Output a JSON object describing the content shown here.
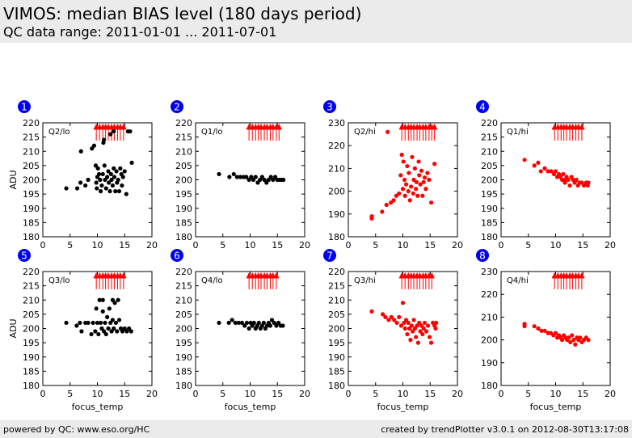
{
  "header": {
    "title": "VIMOS: median BIAS level (180 days period)",
    "subtitle": "QC data range: 2011-01-01 ... 2011-07-01"
  },
  "footer": {
    "left": "powered by QC: www.eso.org/HC",
    "right": "created by trendPlotter v3.0.1 on 2012-08-30T13:17:08"
  },
  "colors": {
    "black": "#000000",
    "red": "#ff0000",
    "badge": "#0000ee",
    "band": "#ebebeb"
  },
  "chart_data": [
    {
      "type": "scatter",
      "panel_number": "1",
      "label": "Q2/lo",
      "color": "#000000",
      "xlabel": "",
      "ylabel": "ADU",
      "xlim": [
        0,
        20
      ],
      "ylim": [
        180,
        220
      ],
      "xticks": [
        0,
        5,
        10,
        15,
        20
      ],
      "yticks": [
        180,
        185,
        190,
        195,
        200,
        205,
        210,
        215,
        220
      ],
      "markers_top": [
        9.8,
        10.4,
        11.0,
        11.5,
        12.0,
        12.6,
        13.1,
        13.7,
        14.2,
        14.8
      ],
      "points": [
        [
          4.3,
          197
        ],
        [
          6.3,
          197
        ],
        [
          7.0,
          210
        ],
        [
          6.9,
          199
        ],
        [
          7.8,
          198
        ],
        [
          8.3,
          200
        ],
        [
          9.0,
          211
        ],
        [
          9.4,
          212
        ],
        [
          9.7,
          205
        ],
        [
          9.8,
          199
        ],
        [
          9.9,
          197
        ],
        [
          10.0,
          201
        ],
        [
          10.1,
          204
        ],
        [
          10.3,
          202
        ],
        [
          10.5,
          200
        ],
        [
          10.6,
          196
        ],
        [
          10.8,
          198
        ],
        [
          11.0,
          202
        ],
        [
          11.1,
          213
        ],
        [
          11.3,
          205
        ],
        [
          11.4,
          200
        ],
        [
          11.6,
          197
        ],
        [
          11.8,
          201
        ],
        [
          12.0,
          203
        ],
        [
          12.1,
          199
        ],
        [
          12.3,
          196
        ],
        [
          12.5,
          202
        ],
        [
          12.6,
          200
        ],
        [
          12.8,
          198
        ],
        [
          13.0,
          204
        ],
        [
          13.1,
          201
        ],
        [
          13.3,
          196
        ],
        [
          13.5,
          203
        ],
        [
          13.6,
          199
        ],
        [
          13.8,
          200
        ],
        [
          14.0,
          196
        ],
        [
          14.2,
          204
        ],
        [
          14.4,
          202
        ],
        [
          14.5,
          198
        ],
        [
          14.7,
          201
        ],
        [
          15.0,
          203
        ],
        [
          15.3,
          195
        ],
        [
          15.6,
          217
        ],
        [
          16.0,
          217
        ],
        [
          16.3,
          206
        ],
        [
          13.0,
          217
        ],
        [
          12.4,
          216
        ],
        [
          11.2,
          214
        ]
      ]
    },
    {
      "type": "scatter",
      "panel_number": "2",
      "label": "Q1/lo",
      "color": "#000000",
      "xlabel": "",
      "ylabel": "",
      "xlim": [
        0,
        20
      ],
      "ylim": [
        180,
        220
      ],
      "xticks": [
        0,
        5,
        10,
        15,
        20
      ],
      "yticks": [
        180,
        185,
        190,
        195,
        200,
        205,
        210,
        215,
        220
      ],
      "markers_top": [
        9.8,
        10.4,
        11.0,
        11.5,
        12.0,
        12.6,
        13.1,
        13.7,
        14.2,
        14.8,
        15.3
      ],
      "points": [
        [
          4.3,
          202
        ],
        [
          6.2,
          201
        ],
        [
          7.0,
          202
        ],
        [
          7.6,
          201
        ],
        [
          8.2,
          201
        ],
        [
          8.8,
          201
        ],
        [
          9.3,
          201
        ],
        [
          9.8,
          200
        ],
        [
          10.2,
          201
        ],
        [
          10.6,
          200
        ],
        [
          11.0,
          201
        ],
        [
          11.4,
          199
        ],
        [
          11.8,
          200
        ],
        [
          12.2,
          201
        ],
        [
          12.6,
          200
        ],
        [
          13.0,
          199
        ],
        [
          13.4,
          200
        ],
        [
          13.8,
          201
        ],
        [
          14.2,
          200
        ],
        [
          14.6,
          201
        ],
        [
          15.0,
          200
        ],
        [
          15.4,
          200
        ],
        [
          15.8,
          200
        ],
        [
          16.1,
          200
        ]
      ]
    },
    {
      "type": "scatter",
      "panel_number": "3",
      "label": "Q2/hi",
      "color": "#ff0000",
      "xlabel": "",
      "ylabel": "",
      "xlim": [
        0,
        20
      ],
      "ylim": [
        180,
        230
      ],
      "xticks": [
        0,
        5,
        10,
        15,
        20
      ],
      "yticks": [
        180,
        190,
        200,
        210,
        220,
        230
      ],
      "markers_top": [
        9.8,
        10.4,
        11.0,
        11.5,
        12.0,
        12.6,
        13.1,
        13.7,
        14.2,
        14.8,
        15.3,
        15.8
      ],
      "points": [
        [
          4.3,
          188
        ],
        [
          4.3,
          189
        ],
        [
          6.2,
          191
        ],
        [
          7.0,
          194
        ],
        [
          7.8,
          195
        ],
        [
          8.3,
          196
        ],
        [
          8.8,
          198
        ],
        [
          9.3,
          199
        ],
        [
          9.6,
          207
        ],
        [
          9.8,
          216
        ],
        [
          10.0,
          201
        ],
        [
          10.1,
          213
        ],
        [
          10.3,
          205
        ],
        [
          10.4,
          198
        ],
        [
          10.6,
          203
        ],
        [
          10.8,
          211
        ],
        [
          11.0,
          200
        ],
        [
          11.1,
          208
        ],
        [
          11.3,
          196
        ],
        [
          11.5,
          202
        ],
        [
          11.7,
          215
        ],
        [
          11.9,
          199
        ],
        [
          12.0,
          205
        ],
        [
          12.2,
          210
        ],
        [
          12.4,
          201
        ],
        [
          12.5,
          204
        ],
        [
          12.7,
          198
        ],
        [
          12.9,
          213
        ],
        [
          13.0,
          207
        ],
        [
          13.2,
          203
        ],
        [
          13.4,
          209
        ],
        [
          13.6,
          198
        ],
        [
          13.8,
          204
        ],
        [
          14.0,
          206
        ],
        [
          14.2,
          201
        ],
        [
          14.5,
          208
        ],
        [
          14.8,
          205
        ],
        [
          15.2,
          195
        ],
        [
          15.8,
          212
        ],
        [
          7.2,
          226
        ]
      ]
    },
    {
      "type": "scatter",
      "panel_number": "4",
      "label": "Q1/hi",
      "color": "#ff0000",
      "xlabel": "",
      "ylabel": "",
      "xlim": [
        0,
        20
      ],
      "ylim": [
        180,
        220
      ],
      "xticks": [
        0,
        5,
        10,
        15,
        20
      ],
      "yticks": [
        180,
        185,
        190,
        195,
        200,
        205,
        210,
        215,
        220
      ],
      "markers_top": [
        9.8,
        10.4,
        11.0,
        11.5,
        12.0,
        12.6,
        13.1,
        13.7,
        14.2,
        14.8
      ],
      "points": [
        [
          4.3,
          207
        ],
        [
          6.1,
          205
        ],
        [
          6.8,
          206
        ],
        [
          7.3,
          203
        ],
        [
          8.0,
          204
        ],
        [
          8.6,
          203
        ],
        [
          9.2,
          203
        ],
        [
          9.7,
          202
        ],
        [
          10.0,
          203
        ],
        [
          10.3,
          201
        ],
        [
          10.6,
          202
        ],
        [
          10.9,
          201
        ],
        [
          11.2,
          200
        ],
        [
          11.4,
          202
        ],
        [
          11.7,
          199
        ],
        [
          12.0,
          201
        ],
        [
          12.3,
          200
        ],
        [
          12.6,
          198
        ],
        [
          12.9,
          201
        ],
        [
          13.2,
          200
        ],
        [
          13.5,
          199
        ],
        [
          13.8,
          200
        ],
        [
          14.1,
          198
        ],
        [
          14.4,
          199
        ],
        [
          14.8,
          199
        ],
        [
          15.2,
          198
        ],
        [
          15.6,
          199
        ],
        [
          16.0,
          199
        ],
        [
          15.9,
          198
        ],
        [
          11.8,
          200
        ]
      ]
    },
    {
      "type": "scatter",
      "panel_number": "5",
      "label": "Q3/lo",
      "color": "#000000",
      "xlabel": "focus_temp",
      "ylabel": "ADU",
      "xlim": [
        0,
        20
      ],
      "ylim": [
        180,
        220
      ],
      "xticks": [
        0,
        5,
        10,
        15,
        20
      ],
      "yticks": [
        180,
        185,
        190,
        195,
        200,
        205,
        210,
        215,
        220
      ],
      "markers_top": [
        9.8,
        10.4,
        11.0,
        11.5,
        12.0,
        12.6,
        13.1,
        13.7,
        14.2,
        14.8
      ],
      "points": [
        [
          4.3,
          202
        ],
        [
          6.2,
          201
        ],
        [
          6.8,
          202
        ],
        [
          7.1,
          199
        ],
        [
          7.8,
          202
        ],
        [
          8.3,
          202
        ],
        [
          8.9,
          198
        ],
        [
          9.2,
          202
        ],
        [
          9.6,
          199
        ],
        [
          9.8,
          207
        ],
        [
          10.0,
          202
        ],
        [
          10.2,
          198
        ],
        [
          10.4,
          210
        ],
        [
          10.6,
          202
        ],
        [
          10.8,
          200
        ],
        [
          11.0,
          206
        ],
        [
          11.2,
          199
        ],
        [
          11.4,
          202
        ],
        [
          11.6,
          198
        ],
        [
          11.8,
          204
        ],
        [
          12.0,
          200
        ],
        [
          12.2,
          207
        ],
        [
          12.4,
          202
        ],
        [
          12.6,
          199
        ],
        [
          12.8,
          210
        ],
        [
          13.0,
          200
        ],
        [
          13.2,
          209
        ],
        [
          13.4,
          202
        ],
        [
          13.6,
          199
        ],
        [
          13.8,
          210
        ],
        [
          14.0,
          203
        ],
        [
          14.3,
          200
        ],
        [
          14.6,
          199
        ],
        [
          15.0,
          200
        ],
        [
          15.4,
          199
        ],
        [
          15.8,
          200
        ],
        [
          16.2,
          199
        ],
        [
          11.0,
          210
        ],
        [
          12.8,
          203
        ]
      ]
    },
    {
      "type": "scatter",
      "panel_number": "6",
      "label": "Q4/lo",
      "color": "#000000",
      "xlabel": "focus_temp",
      "ylabel": "",
      "xlim": [
        0,
        20
      ],
      "ylim": [
        180,
        220
      ],
      "xticks": [
        0,
        5,
        10,
        15,
        20
      ],
      "yticks": [
        180,
        185,
        190,
        195,
        200,
        205,
        210,
        215,
        220
      ],
      "markers_top": [
        9.8,
        10.4,
        11.0,
        11.5,
        12.0,
        12.6,
        13.1,
        13.7,
        14.2,
        14.8
      ],
      "points": [
        [
          4.3,
          202
        ],
        [
          6.1,
          202
        ],
        [
          6.7,
          203
        ],
        [
          7.3,
          202
        ],
        [
          7.9,
          202
        ],
        [
          8.5,
          202
        ],
        [
          9.0,
          201
        ],
        [
          9.4,
          202
        ],
        [
          9.8,
          200
        ],
        [
          10.1,
          202
        ],
        [
          10.4,
          201
        ],
        [
          10.7,
          202
        ],
        [
          11.0,
          200
        ],
        [
          11.3,
          201
        ],
        [
          11.6,
          202
        ],
        [
          11.9,
          200
        ],
        [
          12.2,
          201
        ],
        [
          12.5,
          202
        ],
        [
          12.8,
          200
        ],
        [
          13.1,
          201
        ],
        [
          13.4,
          202
        ],
        [
          13.7,
          201
        ],
        [
          14.0,
          203
        ],
        [
          14.4,
          202
        ],
        [
          14.8,
          201
        ],
        [
          15.2,
          202
        ],
        [
          15.6,
          201
        ],
        [
          16.0,
          201
        ]
      ]
    },
    {
      "type": "scatter",
      "panel_number": "7",
      "label": "Q3/hi",
      "color": "#ff0000",
      "xlabel": "focus_temp",
      "ylabel": "",
      "xlim": [
        0,
        20
      ],
      "ylim": [
        180,
        220
      ],
      "xticks": [
        0,
        5,
        10,
        15,
        20
      ],
      "yticks": [
        180,
        185,
        190,
        195,
        200,
        205,
        210,
        215,
        220
      ],
      "markers_top": [
        9.8,
        10.4,
        11.0,
        11.5,
        12.0,
        12.6,
        13.1,
        13.7,
        14.2,
        14.8,
        15.3
      ],
      "points": [
        [
          4.3,
          206
        ],
        [
          6.3,
          205
        ],
        [
          6.8,
          204
        ],
        [
          7.4,
          203
        ],
        [
          7.9,
          204
        ],
        [
          8.4,
          203
        ],
        [
          8.9,
          202
        ],
        [
          9.3,
          204
        ],
        [
          9.7,
          201
        ],
        [
          10.0,
          209
        ],
        [
          10.2,
          202
        ],
        [
          10.4,
          200
        ],
        [
          10.6,
          203
        ],
        [
          10.8,
          198
        ],
        [
          11.0,
          202
        ],
        [
          11.2,
          200
        ],
        [
          11.4,
          196
        ],
        [
          11.6,
          201
        ],
        [
          11.8,
          199
        ],
        [
          12.0,
          203
        ],
        [
          12.2,
          200
        ],
        [
          12.4,
          197
        ],
        [
          12.6,
          201
        ],
        [
          12.8,
          195
        ],
        [
          13.0,
          202
        ],
        [
          13.2,
          199
        ],
        [
          13.4,
          201
        ],
        [
          13.6,
          198
        ],
        [
          13.8,
          200
        ],
        [
          14.0,
          202
        ],
        [
          14.3,
          199
        ],
        [
          14.6,
          201
        ],
        [
          14.9,
          197
        ],
        [
          15.2,
          195
        ],
        [
          15.5,
          202
        ],
        [
          15.8,
          201
        ],
        [
          16.0,
          200
        ],
        [
          16.1,
          202
        ]
      ]
    },
    {
      "type": "scatter",
      "panel_number": "8",
      "label": "Q4/hi",
      "color": "#ff0000",
      "xlabel": "focus_temp",
      "ylabel": "",
      "xlim": [
        0,
        20
      ],
      "ylim": [
        180,
        230
      ],
      "xticks": [
        0,
        5,
        10,
        15,
        20
      ],
      "yticks": [
        180,
        190,
        200,
        210,
        220,
        230
      ],
      "markers_top": [
        9.8,
        10.4,
        11.0,
        11.5,
        12.0,
        12.6,
        13.1,
        13.7,
        14.2,
        14.8
      ],
      "points": [
        [
          4.3,
          207
        ],
        [
          4.3,
          206
        ],
        [
          6.1,
          206
        ],
        [
          6.8,
          205
        ],
        [
          7.4,
          204
        ],
        [
          8.0,
          204
        ],
        [
          8.6,
          203
        ],
        [
          9.1,
          203
        ],
        [
          9.6,
          202
        ],
        [
          10.0,
          203
        ],
        [
          10.3,
          201
        ],
        [
          10.6,
          202
        ],
        [
          10.9,
          201
        ],
        [
          11.2,
          200
        ],
        [
          11.5,
          202
        ],
        [
          11.8,
          201
        ],
        [
          12.1,
          200
        ],
        [
          12.4,
          201
        ],
        [
          12.7,
          199
        ],
        [
          13.0,
          202
        ],
        [
          13.3,
          200
        ],
        [
          13.6,
          198
        ],
        [
          13.9,
          201
        ],
        [
          14.2,
          200
        ],
        [
          14.5,
          201
        ],
        [
          14.8,
          199
        ],
        [
          15.2,
          200
        ],
        [
          15.6,
          201
        ],
        [
          16.0,
          200
        ]
      ]
    }
  ]
}
